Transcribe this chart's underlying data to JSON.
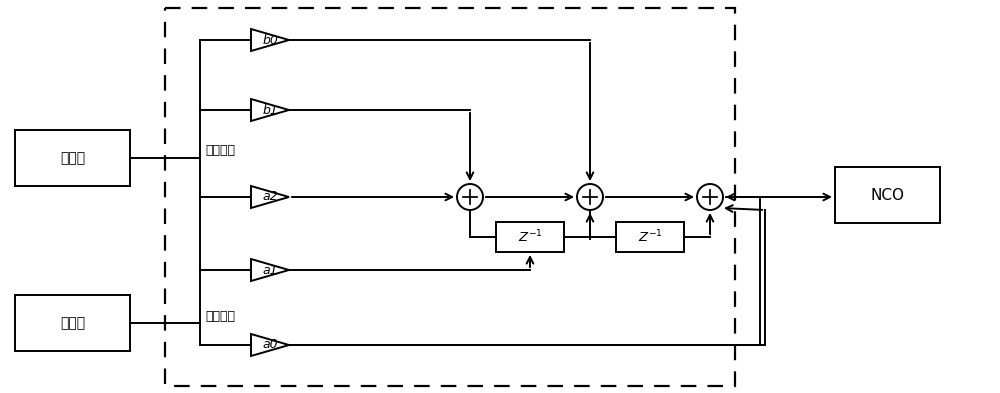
{
  "bg_color": "#ffffff",
  "line_color": "#000000",
  "fig_w": 10.0,
  "fig_h": 3.93,
  "freq_disc_label": "鉴频器",
  "phase_disc_label": "鉴相器",
  "nco_label": "NCO",
  "freq_error_label": "频率误差",
  "phase_error_label": "相位误差"
}
